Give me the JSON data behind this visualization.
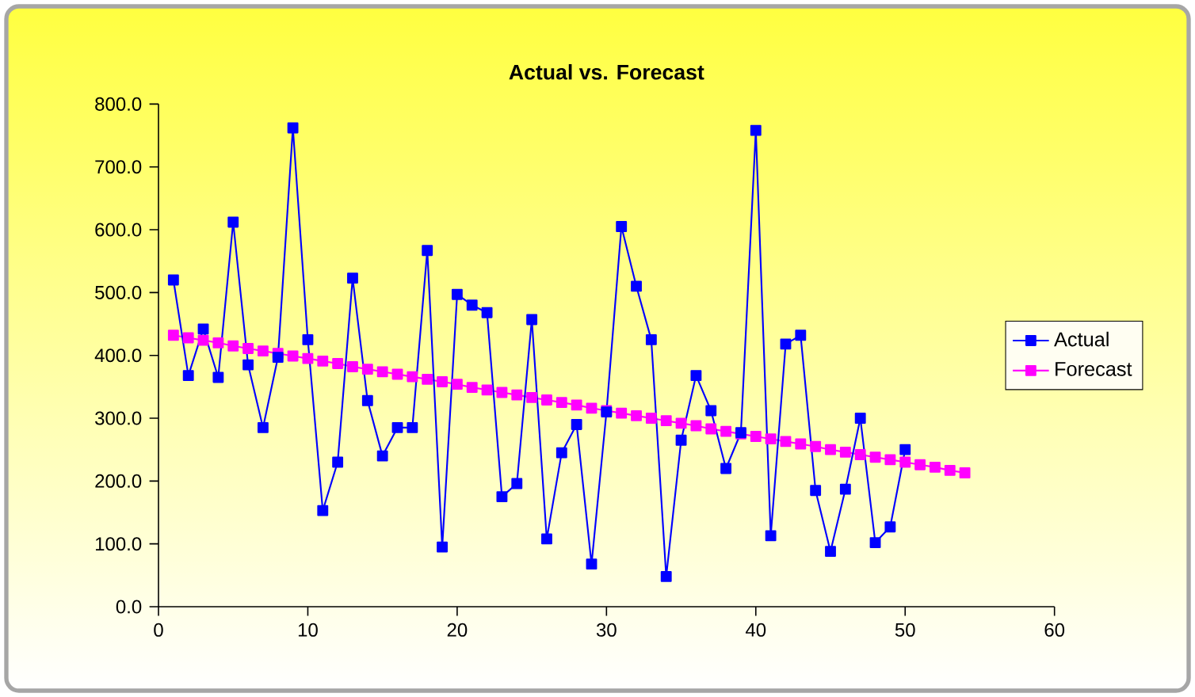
{
  "chart_data": {
    "type": "line",
    "title": "Actual vs. Forecast",
    "xlim": [
      0,
      60
    ],
    "xticks": [
      0,
      10,
      20,
      30,
      40,
      50,
      60
    ],
    "ylim": [
      0,
      800
    ],
    "yticks": [
      {
        "value": 0,
        "label": "0.0"
      },
      {
        "value": 100,
        "label": "100.0"
      },
      {
        "value": 200,
        "label": "200.0"
      },
      {
        "value": 300,
        "label": "300.0"
      },
      {
        "value": 400,
        "label": "400.0"
      },
      {
        "value": 500,
        "label": "500.0"
      },
      {
        "value": 600,
        "label": "600.0"
      },
      {
        "value": 700,
        "label": "700.0"
      },
      {
        "value": 800,
        "label": "800.0"
      }
    ],
    "grid": false,
    "legend": "right",
    "marker": "square",
    "line_style": "solid",
    "series": [
      {
        "name": "Actual",
        "color": "#0000ff",
        "x": [
          1,
          2,
          3,
          4,
          5,
          6,
          7,
          8,
          9,
          10,
          11,
          12,
          13,
          14,
          15,
          16,
          17,
          18,
          19,
          20,
          21,
          22,
          23,
          24,
          25,
          26,
          27,
          28,
          29,
          30,
          31,
          32,
          33,
          34,
          35,
          36,
          37,
          38,
          39,
          40,
          41,
          42,
          43,
          44,
          45,
          46,
          47,
          48,
          49,
          50
        ],
        "values": [
          520,
          368,
          442,
          365,
          612,
          385,
          285,
          397,
          762,
          425,
          153,
          230,
          523,
          328,
          240,
          285,
          285,
          567,
          95,
          497,
          480,
          468,
          175,
          196,
          457,
          108,
          245,
          290,
          68,
          310,
          605,
          510,
          425,
          48,
          265,
          368,
          312,
          220,
          277,
          758,
          113,
          418,
          432,
          185,
          88,
          187,
          300,
          102,
          127,
          250
        ]
      },
      {
        "name": "Forecast",
        "color": "#ff00ff",
        "x": [
          1,
          2,
          3,
          4,
          5,
          6,
          7,
          8,
          9,
          10,
          11,
          12,
          13,
          14,
          15,
          16,
          17,
          18,
          19,
          20,
          21,
          22,
          23,
          24,
          25,
          26,
          27,
          28,
          29,
          30,
          31,
          32,
          33,
          34,
          35,
          36,
          37,
          38,
          39,
          40,
          41,
          42,
          43,
          44,
          45,
          46,
          47,
          48,
          49,
          50,
          51,
          52,
          53,
          54
        ],
        "values": [
          432,
          428,
          424,
          420,
          415,
          411,
          407,
          403,
          399,
          395,
          391,
          387,
          382,
          378,
          374,
          370,
          366,
          362,
          358,
          354,
          349,
          345,
          341,
          337,
          333,
          329,
          325,
          321,
          316,
          312,
          308,
          304,
          300,
          296,
          292,
          288,
          283,
          279,
          275,
          271,
          267,
          263,
          259,
          255,
          250,
          246,
          242,
          238,
          234,
          230,
          226,
          222,
          217,
          213
        ]
      }
    ]
  }
}
